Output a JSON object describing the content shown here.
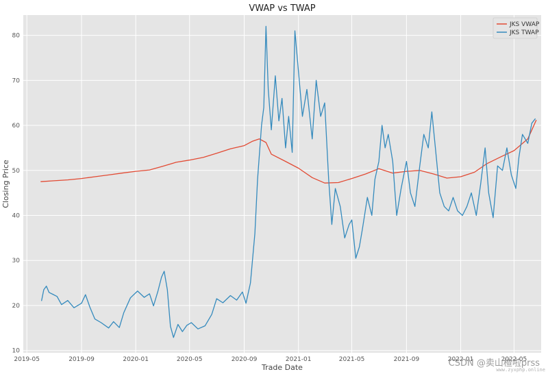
{
  "chart_data": {
    "type": "line",
    "title": "VWAP vs TWAP",
    "xlabel": "Trade Date",
    "ylabel": "Closing Price",
    "x_ticks": [
      "2019-05",
      "2019-09",
      "2020-01",
      "2020-05",
      "2020-09",
      "2021-01",
      "2021-05",
      "2021-09",
      "2022-01",
      "2022-05"
    ],
    "y_ticks": [
      10,
      20,
      30,
      40,
      50,
      60,
      70,
      80
    ],
    "xlim": [
      "2019-04-23",
      "2022-07-01"
    ],
    "ylim": [
      9.5,
      84.5
    ],
    "grid": true,
    "legend_position": "top-right",
    "series": [
      {
        "name": "JKS VWAP",
        "color": "#e24a33",
        "points": [
          [
            "2019-06-01",
            47.5
          ],
          [
            "2019-07-01",
            47.7
          ],
          [
            "2019-08-01",
            47.9
          ],
          [
            "2019-09-01",
            48.2
          ],
          [
            "2019-10-01",
            48.6
          ],
          [
            "2019-11-01",
            49.0
          ],
          [
            "2019-12-01",
            49.4
          ],
          [
            "2020-01-01",
            49.8
          ],
          [
            "2020-02-01",
            50.1
          ],
          [
            "2020-03-01",
            50.9
          ],
          [
            "2020-04-01",
            51.8
          ],
          [
            "2020-05-01",
            52.3
          ],
          [
            "2020-06-01",
            52.9
          ],
          [
            "2020-07-01",
            53.8
          ],
          [
            "2020-08-01",
            54.8
          ],
          [
            "2020-09-01",
            55.5
          ],
          [
            "2020-09-20",
            56.5
          ],
          [
            "2020-10-05",
            57.0
          ],
          [
            "2020-10-20",
            56.2
          ],
          [
            "2020-11-01",
            53.6
          ],
          [
            "2020-12-01",
            52.1
          ],
          [
            "2021-01-01",
            50.5
          ],
          [
            "2021-02-01",
            48.4
          ],
          [
            "2021-03-01",
            47.2
          ],
          [
            "2021-04-01",
            47.3
          ],
          [
            "2021-05-01",
            48.2
          ],
          [
            "2021-06-01",
            49.2
          ],
          [
            "2021-07-01",
            50.4
          ],
          [
            "2021-08-01",
            49.4
          ],
          [
            "2021-09-01",
            49.8
          ],
          [
            "2021-10-01",
            50.0
          ],
          [
            "2021-11-01",
            49.2
          ],
          [
            "2021-12-01",
            48.3
          ],
          [
            "2022-01-01",
            48.6
          ],
          [
            "2022-02-01",
            49.6
          ],
          [
            "2022-03-01",
            51.5
          ],
          [
            "2022-04-01",
            53.0
          ],
          [
            "2022-05-01",
            54.4
          ],
          [
            "2022-06-01",
            57.0
          ],
          [
            "2022-06-20",
            61.2
          ]
        ]
      },
      {
        "name": "JKS TWAP",
        "color": "#348abd",
        "points": [
          [
            "2019-06-03",
            21.0
          ],
          [
            "2019-06-08",
            23.5
          ],
          [
            "2019-06-14",
            24.3
          ],
          [
            "2019-06-20",
            22.9
          ],
          [
            "2019-06-28",
            22.5
          ],
          [
            "2019-07-08",
            22.0
          ],
          [
            "2019-07-18",
            20.2
          ],
          [
            "2019-08-01",
            21.1
          ],
          [
            "2019-08-15",
            19.5
          ],
          [
            "2019-09-01",
            20.5
          ],
          [
            "2019-09-10",
            22.4
          ],
          [
            "2019-09-20",
            19.6
          ],
          [
            "2019-10-01",
            17.0
          ],
          [
            "2019-10-15",
            16.2
          ],
          [
            "2019-11-01",
            15.0
          ],
          [
            "2019-11-12",
            16.4
          ],
          [
            "2019-11-25",
            15.1
          ],
          [
            "2019-12-05",
            18.4
          ],
          [
            "2019-12-20",
            21.7
          ],
          [
            "2020-01-05",
            23.2
          ],
          [
            "2020-01-20",
            21.8
          ],
          [
            "2020-02-01",
            22.6
          ],
          [
            "2020-02-10",
            19.9
          ],
          [
            "2020-02-20",
            23.2
          ],
          [
            "2020-02-28",
            26.3
          ],
          [
            "2020-03-05",
            27.6
          ],
          [
            "2020-03-12",
            23.5
          ],
          [
            "2020-03-19",
            15.4
          ],
          [
            "2020-03-26",
            12.9
          ],
          [
            "2020-04-05",
            15.8
          ],
          [
            "2020-04-15",
            14.2
          ],
          [
            "2020-04-25",
            15.6
          ],
          [
            "2020-05-05",
            16.2
          ],
          [
            "2020-05-20",
            14.8
          ],
          [
            "2020-06-05",
            15.5
          ],
          [
            "2020-06-20",
            18.0
          ],
          [
            "2020-07-01",
            21.5
          ],
          [
            "2020-07-15",
            20.6
          ],
          [
            "2020-08-01",
            22.2
          ],
          [
            "2020-08-15",
            21.2
          ],
          [
            "2020-08-28",
            23.0
          ],
          [
            "2020-09-05",
            20.5
          ],
          [
            "2020-09-15",
            25.0
          ],
          [
            "2020-09-25",
            36.0
          ],
          [
            "2020-10-01",
            48.0
          ],
          [
            "2020-10-10",
            60.0
          ],
          [
            "2020-10-15",
            64.0
          ],
          [
            "2020-10-20",
            82.0
          ],
          [
            "2020-10-25",
            68.0
          ],
          [
            "2020-11-01",
            59.0
          ],
          [
            "2020-11-10",
            71.0
          ],
          [
            "2020-11-18",
            61.0
          ],
          [
            "2020-11-25",
            66.0
          ],
          [
            "2020-12-03",
            55.0
          ],
          [
            "2020-12-10",
            62.0
          ],
          [
            "2020-12-18",
            54.0
          ],
          [
            "2020-12-24",
            81.0
          ],
          [
            "2021-01-01",
            72.0
          ],
          [
            "2021-01-10",
            62.0
          ],
          [
            "2021-01-20",
            68.0
          ],
          [
            "2021-02-01",
            57.0
          ],
          [
            "2021-02-10",
            70.0
          ],
          [
            "2021-02-20",
            62.0
          ],
          [
            "2021-03-01",
            65.0
          ],
          [
            "2021-03-10",
            48.0
          ],
          [
            "2021-03-17",
            38.0
          ],
          [
            "2021-03-25",
            46.0
          ],
          [
            "2021-04-05",
            42.0
          ],
          [
            "2021-04-15",
            35.0
          ],
          [
            "2021-04-25",
            38.0
          ],
          [
            "2021-05-01",
            39.0
          ],
          [
            "2021-05-10",
            30.5
          ],
          [
            "2021-05-18",
            33.0
          ],
          [
            "2021-05-25",
            37.0
          ],
          [
            "2021-06-05",
            44.0
          ],
          [
            "2021-06-15",
            40.0
          ],
          [
            "2021-06-22",
            48.0
          ],
          [
            "2021-07-01",
            52.0
          ],
          [
            "2021-07-08",
            60.0
          ],
          [
            "2021-07-15",
            55.0
          ],
          [
            "2021-07-22",
            58.0
          ],
          [
            "2021-08-01",
            52.0
          ],
          [
            "2021-08-10",
            40.0
          ],
          [
            "2021-08-20",
            46.0
          ],
          [
            "2021-09-01",
            52.0
          ],
          [
            "2021-09-10",
            45.0
          ],
          [
            "2021-09-20",
            42.0
          ],
          [
            "2021-10-01",
            51.0
          ],
          [
            "2021-10-10",
            58.0
          ],
          [
            "2021-10-20",
            55.0
          ],
          [
            "2021-10-28",
            63.0
          ],
          [
            "2021-11-05",
            55.0
          ],
          [
            "2021-11-15",
            45.0
          ],
          [
            "2021-11-25",
            42.0
          ],
          [
            "2021-12-05",
            41.0
          ],
          [
            "2021-12-15",
            44.0
          ],
          [
            "2021-12-25",
            41.0
          ],
          [
            "2022-01-05",
            40.0
          ],
          [
            "2022-01-15",
            42.0
          ],
          [
            "2022-01-25",
            45.0
          ],
          [
            "2022-02-05",
            40.0
          ],
          [
            "2022-02-15",
            47.0
          ],
          [
            "2022-02-25",
            55.0
          ],
          [
            "2022-03-05",
            45.0
          ],
          [
            "2022-03-15",
            39.5
          ],
          [
            "2022-03-25",
            51.0
          ],
          [
            "2022-04-05",
            50.0
          ],
          [
            "2022-04-15",
            55.0
          ],
          [
            "2022-04-25",
            49.0
          ],
          [
            "2022-05-05",
            46.0
          ],
          [
            "2022-05-12",
            53.0
          ],
          [
            "2022-05-20",
            58.0
          ],
          [
            "2022-06-01",
            56.0
          ],
          [
            "2022-06-10",
            60.5
          ],
          [
            "2022-06-18",
            61.5
          ]
        ]
      }
    ]
  },
  "watermark": {
    "line1": "CSDN @卖山楂啦prss",
    "line2": "www.zyxphp.online"
  }
}
